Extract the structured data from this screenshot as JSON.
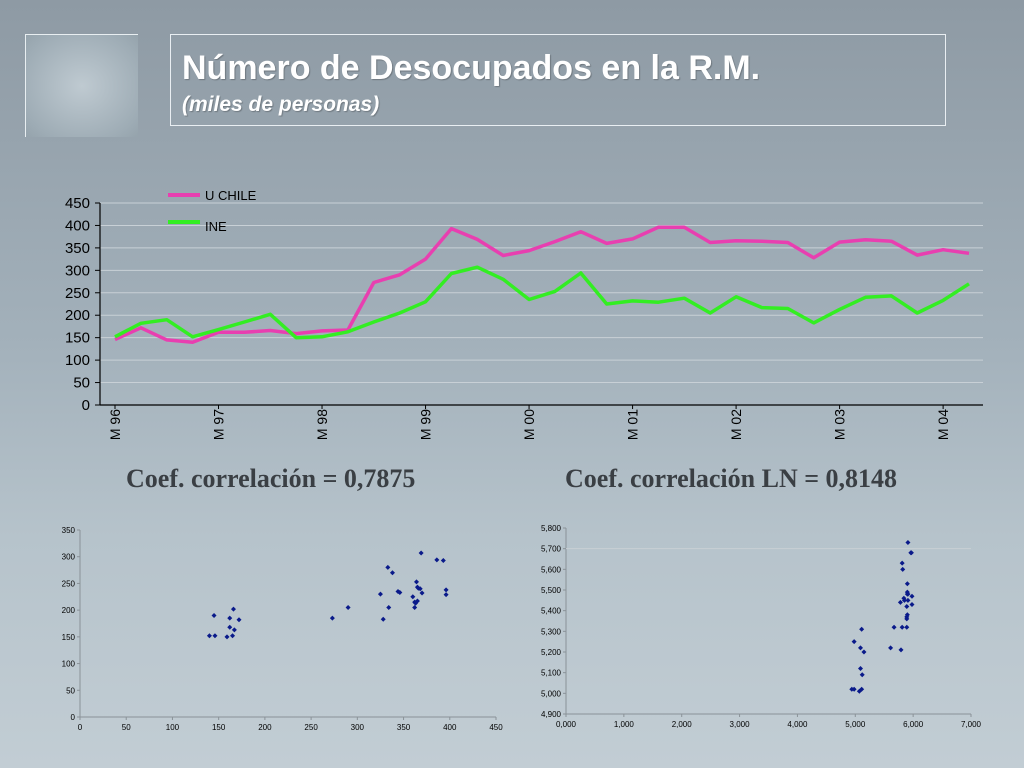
{
  "header": {
    "title": "Número de Desocupados en la R.M.",
    "subtitle": "(miles de personas)"
  },
  "captions": {
    "left": "Coef. correlación = 0,7875",
    "right": "Coef. correlación LN = 0,8148"
  },
  "colors": {
    "u_chile": "#e83fb0",
    "ine": "#33ee22",
    "scatter": "#0a1a8a"
  },
  "chart_data": [
    {
      "type": "line",
      "title": "",
      "ylim": [
        0,
        450
      ],
      "yticks": [
        "0",
        "50",
        "100",
        "150",
        "200",
        "250",
        "300",
        "350",
        "400",
        "450"
      ],
      "xlabels": [
        {
          "label": "M 96",
          "index": 0
        },
        {
          "label": "M 97",
          "index": 4
        },
        {
          "label": "M 98",
          "index": 8
        },
        {
          "label": "M 99",
          "index": 12
        },
        {
          "label": "M 00",
          "index": 16
        },
        {
          "label": "M 01",
          "index": 20
        },
        {
          "label": "M 02",
          "index": 24
        },
        {
          "label": "M 03",
          "index": 28
        },
        {
          "label": "M 04",
          "index": 32
        }
      ],
      "legend_position": "top-left",
      "series": [
        {
          "name": "U CHILE",
          "values": [
            146,
            172,
            145,
            140,
            162,
            162,
            166,
            159,
            165,
            167,
            273,
            290,
            325,
            393,
            369,
            333,
            344,
            364,
            386,
            360,
            370,
            396,
            396,
            362,
            366,
            365,
            362,
            328,
            363,
            368,
            365,
            334,
            346,
            338
          ]
        },
        {
          "name": "INE",
          "values": [
            152,
            182,
            190,
            152,
            168,
            185,
            202,
            150,
            152,
            163,
            185,
            205,
            230,
            293,
            307,
            280,
            235,
            253,
            294,
            225,
            232,
            229,
            238,
            205,
            241,
            217,
            215,
            183,
            213,
            240,
            243,
            205,
            233,
            270
          ]
        }
      ]
    },
    {
      "type": "scatter",
      "title": "",
      "xlim": [
        0,
        450
      ],
      "ylim": [
        0,
        350
      ],
      "xticks": [
        "0",
        "50",
        "100",
        "150",
        "200",
        "250",
        "300",
        "350",
        "400",
        "450"
      ],
      "yticks": [
        "0",
        "50",
        "100",
        "150",
        "200",
        "250",
        "300",
        "350"
      ],
      "points": [
        [
          146,
          152
        ],
        [
          172,
          182
        ],
        [
          145,
          190
        ],
        [
          140,
          152
        ],
        [
          162,
          168
        ],
        [
          162,
          185
        ],
        [
          166,
          202
        ],
        [
          159,
          150
        ],
        [
          165,
          152
        ],
        [
          167,
          163
        ],
        [
          273,
          185
        ],
        [
          290,
          205
        ],
        [
          325,
          230
        ],
        [
          393,
          293
        ],
        [
          369,
          307
        ],
        [
          333,
          280
        ],
        [
          344,
          235
        ],
        [
          364,
          253
        ],
        [
          386,
          294
        ],
        [
          360,
          225
        ],
        [
          370,
          232
        ],
        [
          396,
          229
        ],
        [
          396,
          238
        ],
        [
          362,
          205
        ],
        [
          366,
          241
        ],
        [
          365,
          217
        ],
        [
          362,
          215
        ],
        [
          328,
          183
        ],
        [
          363,
          213
        ],
        [
          368,
          240
        ],
        [
          365,
          243
        ],
        [
          334,
          205
        ],
        [
          346,
          233
        ],
        [
          338,
          270
        ]
      ]
    },
    {
      "type": "scatter",
      "title": "",
      "xlim": [
        0,
        7
      ],
      "ylim": [
        4.9,
        5.8
      ],
      "xticks": [
        "0,000",
        "1,000",
        "2,000",
        "3,000",
        "4,000",
        "5,000",
        "6,000",
        "7,000"
      ],
      "yticks": [
        "4,900",
        "5,000",
        "5,100",
        "5,200",
        "5,300",
        "5,400",
        "5,500",
        "5,600",
        "5,700",
        "5,800"
      ],
      "points": [
        [
          4.98,
          5.02
        ],
        [
          5.15,
          5.2
        ],
        [
          4.98,
          5.25
        ],
        [
          4.94,
          5.02
        ],
        [
          5.09,
          5.12
        ],
        [
          5.09,
          5.22
        ],
        [
          5.11,
          5.31
        ],
        [
          5.07,
          5.01
        ],
        [
          5.11,
          5.02
        ],
        [
          5.12,
          5.09
        ],
        [
          5.61,
          5.22
        ],
        [
          5.67,
          5.32
        ],
        [
          5.78,
          5.44
        ],
        [
          5.97,
          5.68
        ],
        [
          5.91,
          5.73
        ],
        [
          5.81,
          5.63
        ],
        [
          5.84,
          5.46
        ],
        [
          5.9,
          5.53
        ],
        [
          5.96,
          5.68
        ],
        [
          5.89,
          5.42
        ],
        [
          5.91,
          5.45
        ],
        [
          5.98,
          5.43
        ],
        [
          5.98,
          5.47
        ],
        [
          5.89,
          5.32
        ],
        [
          5.9,
          5.48
        ],
        [
          5.9,
          5.38
        ],
        [
          5.89,
          5.37
        ],
        [
          5.79,
          5.21
        ],
        [
          5.89,
          5.36
        ],
        [
          5.91,
          5.48
        ],
        [
          5.9,
          5.49
        ],
        [
          5.81,
          5.32
        ],
        [
          5.85,
          5.45
        ],
        [
          5.82,
          5.6
        ]
      ]
    }
  ]
}
